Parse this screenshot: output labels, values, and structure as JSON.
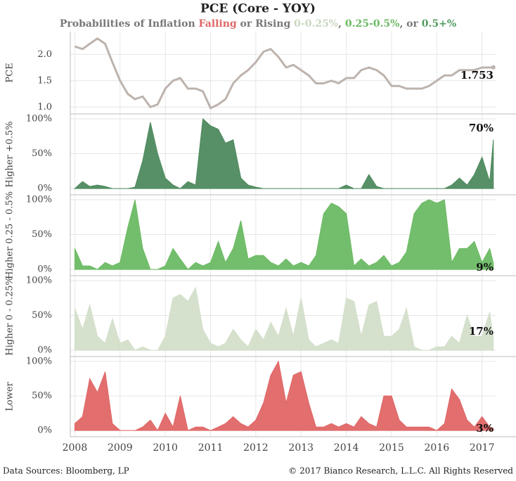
{
  "header": {
    "title": "PCE (Core - YOY)",
    "subtitle": [
      {
        "text": "Probabilities of Inflation ",
        "color": "#777777"
      },
      {
        "text": "Falling",
        "color": "#e06666"
      },
      {
        "text": " or Rising ",
        "color": "#777777"
      },
      {
        "text": "0-0.25%",
        "color": "#c9d8c0"
      },
      {
        "text": ", ",
        "color": "#777777"
      },
      {
        "text": "0.25-0.5%",
        "color": "#6cba64"
      },
      {
        "text": ", or ",
        "color": "#777777"
      },
      {
        "text": "0.5+%",
        "color": "#4e9a5e"
      }
    ]
  },
  "footer": {
    "left": "Data Sources: Bloomberg, LP",
    "right": "© 2017 Bianco Research, L.L.C. All Rights Reserved"
  },
  "chart_data": [
    {
      "type": "line",
      "ylabel": "PCE",
      "xlim": [
        2007.9,
        2017.3
      ],
      "ylim": [
        0.87,
        2.43
      ],
      "yticks": [
        {
          "value": 1,
          "label": "1.0"
        },
        1.5,
        {
          "value": 2,
          "label": "2.0"
        }
      ],
      "grid": true,
      "x": [
        2008,
        2008.17,
        2008.33,
        2008.5,
        2008.67,
        2008.83,
        2009,
        2009.17,
        2009.33,
        2009.5,
        2009.67,
        2009.83,
        2010,
        2010.17,
        2010.33,
        2010.5,
        2010.67,
        2010.83,
        2011,
        2011.17,
        2011.33,
        2011.5,
        2011.67,
        2011.83,
        2012,
        2012.17,
        2012.33,
        2012.5,
        2012.67,
        2012.83,
        2013,
        2013.17,
        2013.33,
        2013.5,
        2013.67,
        2013.83,
        2014,
        2014.17,
        2014.33,
        2014.5,
        2014.67,
        2014.83,
        2015,
        2015.17,
        2015.33,
        2015.5,
        2015.67,
        2015.83,
        2016,
        2016.17,
        2016.33,
        2016.5,
        2016.67,
        2016.83,
        2017,
        2017.17,
        2017.25
      ],
      "series": [
        {
          "color": "#bdb3ad",
          "end_label": "1.753",
          "values": [
            2.15,
            2.1,
            2.2,
            2.3,
            2.2,
            1.85,
            1.5,
            1.25,
            1.15,
            1.2,
            1.0,
            1.05,
            1.35,
            1.5,
            1.55,
            1.35,
            1.35,
            1.3,
            0.98,
            1.05,
            1.15,
            1.45,
            1.6,
            1.7,
            1.85,
            2.05,
            2.1,
            1.95,
            1.75,
            1.8,
            1.7,
            1.6,
            1.45,
            1.45,
            1.5,
            1.45,
            1.55,
            1.55,
            1.7,
            1.75,
            1.7,
            1.6,
            1.4,
            1.4,
            1.35,
            1.35,
            1.35,
            1.4,
            1.5,
            1.6,
            1.6,
            1.7,
            1.7,
            1.7,
            1.75,
            1.75,
            1.753
          ]
        }
      ]
    },
    {
      "type": "area",
      "ylabel": "Higher +0.5%",
      "xlim": [
        2007.9,
        2017.3
      ],
      "ylim": [
        -9,
        107
      ],
      "yticks": [
        {
          "value": 0,
          "label": "0%"
        },
        {
          "value": 50,
          "label": "50%"
        },
        {
          "value": 100,
          "label": "100%"
        }
      ],
      "grid": true,
      "x": [
        2008,
        2008.17,
        2008.33,
        2008.5,
        2008.67,
        2008.83,
        2009,
        2009.17,
        2009.33,
        2009.5,
        2009.67,
        2009.83,
        2010,
        2010.17,
        2010.33,
        2010.5,
        2010.67,
        2010.83,
        2011,
        2011.17,
        2011.33,
        2011.5,
        2011.67,
        2011.83,
        2012,
        2012.17,
        2012.33,
        2012.5,
        2012.67,
        2012.83,
        2013,
        2013.17,
        2013.33,
        2013.5,
        2013.67,
        2013.83,
        2014,
        2014.17,
        2014.33,
        2014.5,
        2014.67,
        2014.83,
        2015,
        2015.17,
        2015.33,
        2015.5,
        2015.67,
        2015.83,
        2016,
        2016.17,
        2016.33,
        2016.5,
        2016.67,
        2016.83,
        2017,
        2017.17,
        2017.25
      ],
      "series": [
        {
          "color": "#4e8a5e",
          "end_label": "70%",
          "values": [
            0,
            10,
            3,
            5,
            3,
            0,
            0,
            0,
            2,
            40,
            95,
            50,
            15,
            5,
            0,
            10,
            5,
            100,
            90,
            85,
            65,
            70,
            15,
            5,
            2,
            0,
            0,
            0,
            0,
            0,
            0,
            0,
            0,
            0,
            0,
            0,
            5,
            0,
            0,
            20,
            3,
            0,
            0,
            0,
            0,
            0,
            0,
            0,
            0,
            0,
            5,
            15,
            5,
            20,
            45,
            10,
            70
          ]
        }
      ]
    },
    {
      "type": "area",
      "ylabel": "Higher 0.25 - 0.5%",
      "xlim": [
        2007.9,
        2017.3
      ],
      "ylim": [
        -9,
        107
      ],
      "yticks": [
        {
          "value": 0,
          "label": "0%"
        },
        {
          "value": 50,
          "label": "50%"
        },
        {
          "value": 100,
          "label": "100%"
        }
      ],
      "grid": true,
      "x": [
        2008,
        2008.17,
        2008.33,
        2008.5,
        2008.67,
        2008.83,
        2009,
        2009.17,
        2009.33,
        2009.5,
        2009.67,
        2009.83,
        2010,
        2010.17,
        2010.33,
        2010.5,
        2010.67,
        2010.83,
        2011,
        2011.17,
        2011.33,
        2011.5,
        2011.67,
        2011.83,
        2012,
        2012.17,
        2012.33,
        2012.5,
        2012.67,
        2012.83,
        2013,
        2013.17,
        2013.33,
        2013.5,
        2013.67,
        2013.83,
        2014,
        2014.17,
        2014.33,
        2014.5,
        2014.67,
        2014.83,
        2015,
        2015.17,
        2015.33,
        2015.5,
        2015.67,
        2015.83,
        2016,
        2016.17,
        2016.33,
        2016.5,
        2016.67,
        2016.83,
        2017,
        2017.17,
        2017.25
      ],
      "series": [
        {
          "color": "#6cba64",
          "end_label": "9%",
          "values": [
            30,
            5,
            5,
            0,
            10,
            5,
            10,
            60,
            100,
            30,
            0,
            0,
            5,
            30,
            15,
            0,
            10,
            5,
            10,
            40,
            10,
            30,
            70,
            15,
            20,
            20,
            10,
            5,
            15,
            5,
            10,
            5,
            20,
            80,
            95,
            90,
            80,
            5,
            15,
            5,
            10,
            20,
            5,
            10,
            25,
            80,
            95,
            100,
            95,
            100,
            10,
            30,
            30,
            40,
            10,
            30,
            9
          ]
        }
      ]
    },
    {
      "type": "area",
      "ylabel": "Higher 0 - 0.25%",
      "xlim": [
        2007.9,
        2017.3
      ],
      "ylim": [
        -9,
        107
      ],
      "yticks": [
        {
          "value": 0,
          "label": "0%"
        },
        {
          "value": 50,
          "label": "50%"
        },
        {
          "value": 100,
          "label": "100%"
        }
      ],
      "grid": true,
      "x": [
        2008,
        2008.17,
        2008.33,
        2008.5,
        2008.67,
        2008.83,
        2009,
        2009.17,
        2009.33,
        2009.5,
        2009.67,
        2009.83,
        2010,
        2010.17,
        2010.33,
        2010.5,
        2010.67,
        2010.83,
        2011,
        2011.17,
        2011.33,
        2011.5,
        2011.67,
        2011.83,
        2012,
        2012.17,
        2012.33,
        2012.5,
        2012.67,
        2012.83,
        2013,
        2013.17,
        2013.33,
        2013.5,
        2013.67,
        2013.83,
        2014,
        2014.17,
        2014.33,
        2014.5,
        2014.67,
        2014.83,
        2015,
        2015.17,
        2015.33,
        2015.5,
        2015.67,
        2015.83,
        2016,
        2016.17,
        2016.33,
        2016.5,
        2016.67,
        2016.83,
        2017,
        2017.17,
        2017.25
      ],
      "series": [
        {
          "color": "#d3dfca",
          "end_label": "17%",
          "values": [
            60,
            30,
            65,
            20,
            10,
            45,
            10,
            15,
            0,
            5,
            0,
            0,
            20,
            75,
            80,
            70,
            90,
            30,
            10,
            5,
            10,
            30,
            15,
            5,
            30,
            15,
            40,
            20,
            60,
            20,
            75,
            15,
            5,
            10,
            15,
            10,
            75,
            70,
            20,
            65,
            70,
            20,
            20,
            30,
            60,
            5,
            0,
            0,
            5,
            5,
            20,
            10,
            50,
            20,
            20,
            55,
            17
          ]
        }
      ]
    },
    {
      "type": "area",
      "ylabel": "Lower",
      "xlim": [
        2007.9,
        2017.3
      ],
      "ylim": [
        -9,
        107
      ],
      "yticks": [
        {
          "value": 0,
          "label": "0%"
        },
        {
          "value": 50,
          "label": "50%"
        },
        {
          "value": 100,
          "label": "100%"
        }
      ],
      "grid": true,
      "xticks": [
        2008,
        2009,
        2010,
        2011,
        2012,
        2013,
        2014,
        2015,
        2016,
        2017
      ],
      "x": [
        2008,
        2008.17,
        2008.33,
        2008.5,
        2008.67,
        2008.83,
        2009,
        2009.17,
        2009.33,
        2009.5,
        2009.67,
        2009.83,
        2010,
        2010.17,
        2010.33,
        2010.5,
        2010.67,
        2010.83,
        2011,
        2011.17,
        2011.33,
        2011.5,
        2011.67,
        2011.83,
        2012,
        2012.17,
        2012.33,
        2012.5,
        2012.67,
        2012.83,
        2013,
        2013.17,
        2013.33,
        2013.5,
        2013.67,
        2013.83,
        2014,
        2014.17,
        2014.33,
        2014.5,
        2014.67,
        2014.83,
        2015,
        2015.17,
        2015.33,
        2015.5,
        2015.67,
        2015.83,
        2016,
        2016.17,
        2016.33,
        2016.5,
        2016.67,
        2016.83,
        2017,
        2017.17,
        2017.25
      ],
      "series": [
        {
          "color": "#e06666",
          "end_label": "3%",
          "values": [
            10,
            20,
            75,
            55,
            85,
            10,
            0,
            0,
            0,
            5,
            15,
            0,
            25,
            5,
            50,
            0,
            5,
            5,
            0,
            5,
            10,
            20,
            10,
            5,
            15,
            40,
            80,
            100,
            40,
            80,
            85,
            40,
            5,
            5,
            10,
            5,
            10,
            5,
            20,
            10,
            5,
            50,
            50,
            15,
            5,
            5,
            5,
            5,
            0,
            10,
            60,
            45,
            15,
            5,
            20,
            5,
            3
          ]
        }
      ]
    }
  ]
}
